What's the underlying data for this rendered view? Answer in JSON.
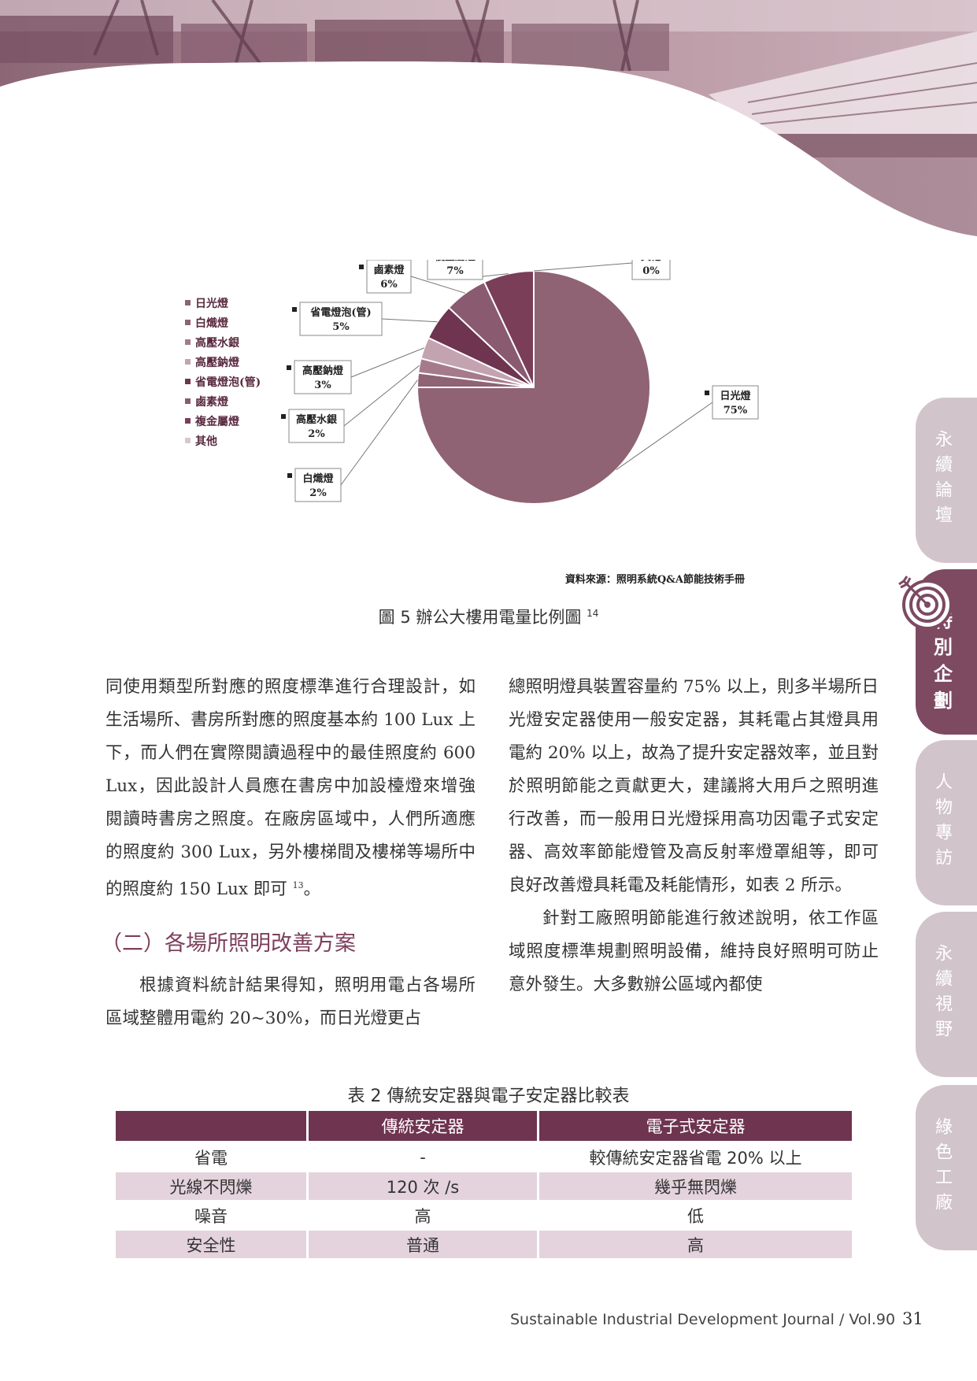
{
  "side_tabs": [
    {
      "label": "永續論壇",
      "active": false
    },
    {
      "label": "特別企劃",
      "active": true
    },
    {
      "label": "人物專訪",
      "active": false
    },
    {
      "label": "永續視野",
      "active": false
    },
    {
      "label": "綠色工廠",
      "active": false
    }
  ],
  "chart_data": {
    "type": "pie",
    "legend": [
      "日光燈",
      "白熾燈",
      "高壓水銀",
      "高壓鈉燈",
      "省電燈泡(管)",
      "鹵素燈",
      "複金屬燈",
      "其他"
    ],
    "slices": [
      {
        "label": "日光燈",
        "value": 75,
        "display": "75%",
        "color": "#8f6373"
      },
      {
        "label": "白熾燈",
        "value": 2,
        "display": "2%",
        "color": "#8f6373"
      },
      {
        "label": "高壓水銀",
        "value": 2,
        "display": "2%",
        "color": "#a57b8b"
      },
      {
        "label": "高壓鈉燈",
        "value": 3,
        "display": "3%",
        "color": "#c4a3b0"
      },
      {
        "label": "省電燈泡(管)",
        "value": 5,
        "display": "5%",
        "color": "#6e3450"
      },
      {
        "label": "鹵素燈",
        "value": 6,
        "display": "6%",
        "color": "#8a5a70"
      },
      {
        "label": "複金屬燈",
        "value": 7,
        "display": "7%",
        "color": "#7a3e59"
      },
      {
        "label": "其他",
        "value": 0,
        "display": "0%",
        "color": "#d8c6cf"
      }
    ],
    "source": "資料來源：照明系統Q&A節能技術手冊"
  },
  "figure": {
    "caption": "圖 5  辦公大樓用電量比例圖",
    "ref": "14"
  },
  "body": {
    "left_p1": "同使用類型所對應的照度標準進行合理設計，如生活場所、書房所對應的照度基本約 100 Lux 上下，而人們在實際閱讀過程中的最佳照度約 600 Lux，因此設計人員應在書房中加設檯燈來增強閱讀時書房之照度。在廠房區域中，人們所適應的照度約 300 Lux，另外樓梯間及樓梯等場所中的照度約 150 Lux 即可",
    "left_p1_ref": "13",
    "left_p1_end": "。",
    "section_heading": "（二）各場所照明改善方案",
    "left_p2": "根據資料統計結果得知，照明用電占各場所區域整體用電約 20~30%，而日光燈更占",
    "right_p1": "總照明燈具裝置容量約 75% 以上，則多半場所日光燈安定器使用一般安定器，其耗電占其燈具用電約 20% 以上，故為了提升安定器效率，並且對於照明節能之貢獻更大，建議將大用戶之照明進行改善，而一般用日光燈採用高功因電子式安定器、高效率節能燈管及高反射率燈罩組等，即可良好改善燈具耗電及耗能情形，如表 2 所示。",
    "right_p2": "針對工廠照明節能進行敘述說明，依工作區域照度標準規劃照明設備，維持良好照明可防止意外發生。大多數辦公區域內都使"
  },
  "table": {
    "caption": "表 2  傳統安定器與電子安定器比較表",
    "headers": [
      "",
      "傳統安定器",
      "電子式安定器"
    ],
    "rows": [
      [
        "省電",
        "-",
        "較傳統安定器省電 20% 以上"
      ],
      [
        "光線不閃爍",
        "120 次 /s",
        "幾乎無閃爍"
      ],
      [
        "噪音",
        "高",
        "低"
      ],
      [
        "安全性",
        "普通",
        "高"
      ]
    ]
  },
  "footer": {
    "journal": "Sustainable Industrial Development Journal / Vol.90",
    "page": "31"
  }
}
